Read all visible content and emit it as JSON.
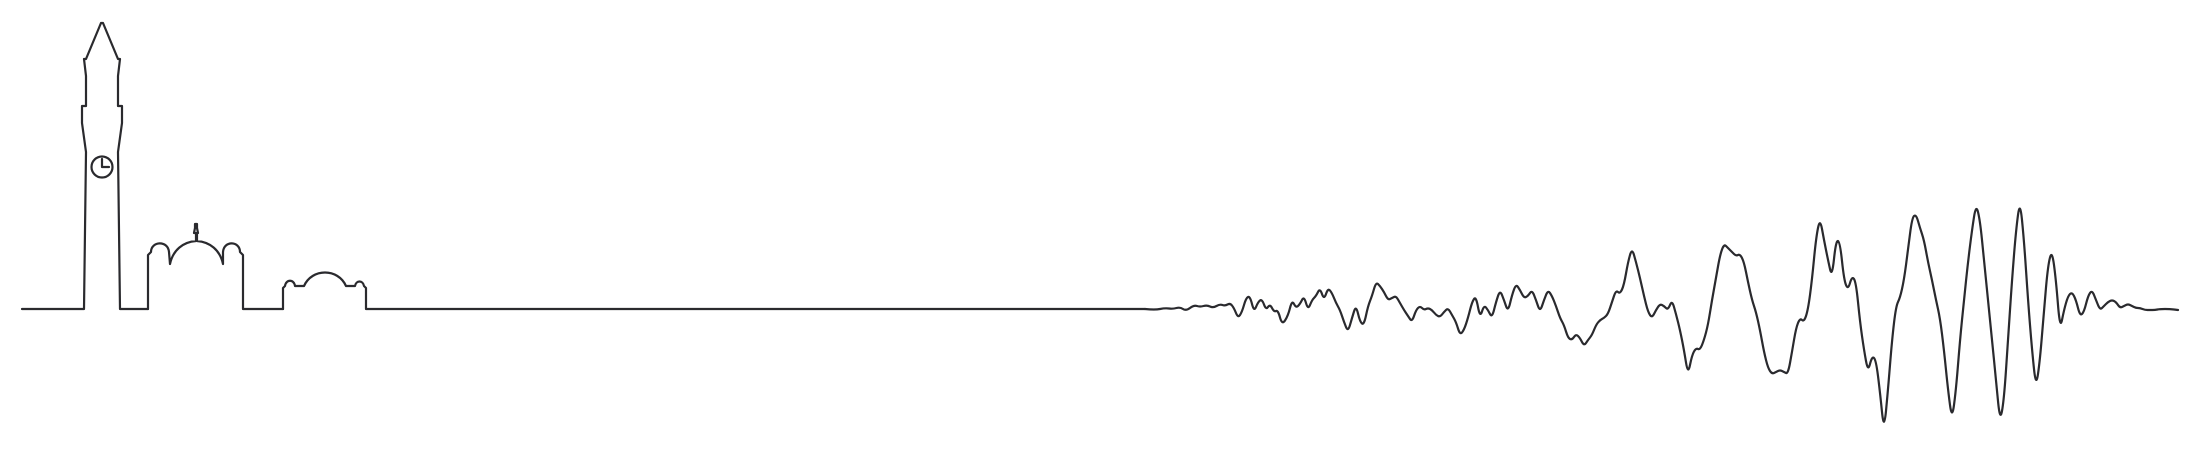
{
  "illustration": {
    "subject": "line-art-skyline-with-seismograph-trace",
    "stroke_color": "#2a2a2e",
    "background_color": "#ffffff",
    "icons": [
      "clock-icon"
    ]
  }
}
